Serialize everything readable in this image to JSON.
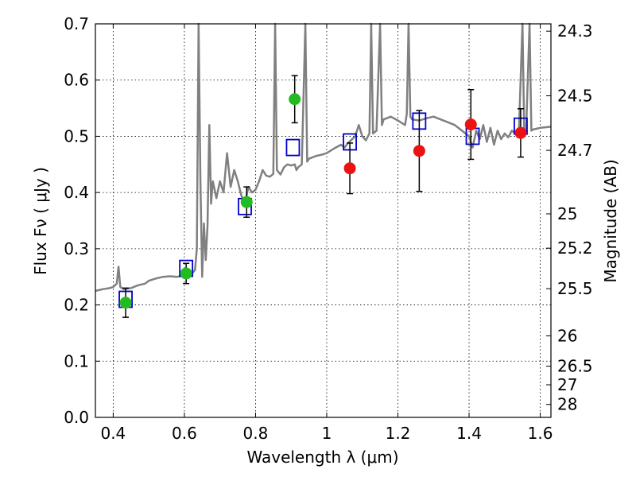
{
  "chart_data": {
    "type": "scatter",
    "xlabel": "Wavelength  λ (μm)",
    "ylabel": "Flux  Fν  ( μJy )",
    "ylabel_right": "Magnitude (AB)",
    "xlim": [
      0.35,
      1.63
    ],
    "ylim": [
      0.0,
      0.7
    ],
    "grid": true,
    "x_ticks": [
      {
        "value": 0.4,
        "label": "0.4"
      },
      {
        "value": 0.6,
        "label": "0.6"
      },
      {
        "value": 0.8,
        "label": "0.8"
      },
      {
        "value": 1.0,
        "label": "1"
      },
      {
        "value": 1.2,
        "label": "1.2"
      },
      {
        "value": 1.4,
        "label": "1.4"
      },
      {
        "value": 1.6,
        "label": "1.6"
      }
    ],
    "y_ticks": [
      {
        "value": 0.0,
        "label": "0.0"
      },
      {
        "value": 0.1,
        "label": "0.1"
      },
      {
        "value": 0.2,
        "label": "0.2"
      },
      {
        "value": 0.3,
        "label": "0.3"
      },
      {
        "value": 0.4,
        "label": "0.4"
      },
      {
        "value": 0.5,
        "label": "0.5"
      },
      {
        "value": 0.6,
        "label": "0.6"
      },
      {
        "value": 0.7,
        "label": "0.7"
      }
    ],
    "mag_ticks": [
      {
        "flux": 0.687,
        "label": "24.3"
      },
      {
        "flux": 0.572,
        "label": "24.5"
      },
      {
        "flux": 0.475,
        "label": "24.7"
      },
      {
        "flux": 0.362,
        "label": "25"
      },
      {
        "flux": 0.301,
        "label": "25.2"
      },
      {
        "flux": 0.229,
        "label": "25.5"
      },
      {
        "flux": 0.145,
        "label": "26"
      },
      {
        "flux": 0.091,
        "label": "26.5"
      },
      {
        "flux": 0.058,
        "label": "27"
      },
      {
        "flux": 0.023,
        "label": "28"
      }
    ],
    "series": [
      {
        "marker": "line",
        "color": "#808080",
        "points": [
          [
            0.35,
            0.225
          ],
          [
            0.37,
            0.228
          ],
          [
            0.39,
            0.23
          ],
          [
            0.4,
            0.232
          ],
          [
            0.41,
            0.238
          ],
          [
            0.415,
            0.268
          ],
          [
            0.42,
            0.232
          ],
          [
            0.43,
            0.228
          ],
          [
            0.45,
            0.23
          ],
          [
            0.47,
            0.235
          ],
          [
            0.49,
            0.238
          ],
          [
            0.5,
            0.243
          ],
          [
            0.52,
            0.247
          ],
          [
            0.54,
            0.25
          ],
          [
            0.56,
            0.251
          ],
          [
            0.58,
            0.25
          ],
          [
            0.6,
            0.253
          ],
          [
            0.61,
            0.25
          ],
          [
            0.62,
            0.255
          ],
          [
            0.63,
            0.262
          ],
          [
            0.635,
            0.3
          ],
          [
            0.64,
            0.7
          ],
          [
            0.645,
            0.42
          ],
          [
            0.65,
            0.25
          ],
          [
            0.655,
            0.345
          ],
          [
            0.66,
            0.28
          ],
          [
            0.665,
            0.34
          ],
          [
            0.67,
            0.52
          ],
          [
            0.675,
            0.38
          ],
          [
            0.68,
            0.42
          ],
          [
            0.69,
            0.39
          ],
          [
            0.7,
            0.42
          ],
          [
            0.71,
            0.4
          ],
          [
            0.72,
            0.47
          ],
          [
            0.73,
            0.41
          ],
          [
            0.74,
            0.44
          ],
          [
            0.75,
            0.42
          ],
          [
            0.76,
            0.395
          ],
          [
            0.77,
            0.38
          ],
          [
            0.78,
            0.41
          ],
          [
            0.79,
            0.4
          ],
          [
            0.8,
            0.405
          ],
          [
            0.81,
            0.42
          ],
          [
            0.82,
            0.44
          ],
          [
            0.83,
            0.43
          ],
          [
            0.84,
            0.428
          ],
          [
            0.85,
            0.433
          ],
          [
            0.855,
            0.7
          ],
          [
            0.86,
            0.44
          ],
          [
            0.87,
            0.432
          ],
          [
            0.88,
            0.445
          ],
          [
            0.89,
            0.45
          ],
          [
            0.9,
            0.448
          ],
          [
            0.91,
            0.45
          ],
          [
            0.915,
            0.44
          ],
          [
            0.92,
            0.445
          ],
          [
            0.93,
            0.45
          ],
          [
            0.94,
            0.7
          ],
          [
            0.945,
            0.455
          ],
          [
            0.95,
            0.46
          ],
          [
            0.97,
            0.465
          ],
          [
            0.99,
            0.468
          ],
          [
            1.0,
            0.47
          ],
          [
            1.02,
            0.478
          ],
          [
            1.04,
            0.485
          ],
          [
            1.05,
            0.48
          ],
          [
            1.06,
            0.488
          ],
          [
            1.07,
            0.494
          ],
          [
            1.08,
            0.5
          ],
          [
            1.09,
            0.52
          ],
          [
            1.1,
            0.5
          ],
          [
            1.11,
            0.493
          ],
          [
            1.12,
            0.505
          ],
          [
            1.125,
            0.7
          ],
          [
            1.13,
            0.505
          ],
          [
            1.14,
            0.51
          ],
          [
            1.15,
            0.7
          ],
          [
            1.155,
            0.52
          ],
          [
            1.16,
            0.53
          ],
          [
            1.18,
            0.535
          ],
          [
            1.2,
            0.528
          ],
          [
            1.22,
            0.52
          ],
          [
            1.225,
            0.54
          ],
          [
            1.23,
            0.7
          ],
          [
            1.235,
            0.535
          ],
          [
            1.24,
            0.53
          ],
          [
            1.26,
            0.528
          ],
          [
            1.28,
            0.532
          ],
          [
            1.3,
            0.535
          ],
          [
            1.32,
            0.53
          ],
          [
            1.34,
            0.525
          ],
          [
            1.36,
            0.52
          ],
          [
            1.38,
            0.51
          ],
          [
            1.39,
            0.505
          ],
          [
            1.4,
            0.5
          ],
          [
            1.41,
            0.48
          ],
          [
            1.42,
            0.51
          ],
          [
            1.43,
            0.495
          ],
          [
            1.44,
            0.52
          ],
          [
            1.45,
            0.49
          ],
          [
            1.46,
            0.515
          ],
          [
            1.47,
            0.485
          ],
          [
            1.48,
            0.51
          ],
          [
            1.49,
            0.495
          ],
          [
            1.5,
            0.505
          ],
          [
            1.51,
            0.498
          ],
          [
            1.52,
            0.51
          ],
          [
            1.53,
            0.505
          ],
          [
            1.54,
            0.508
          ],
          [
            1.55,
            0.7
          ],
          [
            1.555,
            0.51
          ],
          [
            1.56,
            0.505
          ],
          [
            1.57,
            0.7
          ],
          [
            1.575,
            0.51
          ],
          [
            1.58,
            0.512
          ],
          [
            1.6,
            0.515
          ],
          [
            1.63,
            0.517
          ]
        ]
      },
      {
        "marker": "open-square",
        "color": "#0000cc",
        "points": [
          [
            0.435,
            0.21
          ],
          [
            0.605,
            0.265
          ],
          [
            0.77,
            0.375
          ],
          [
            0.905,
            0.48
          ],
          [
            1.065,
            0.49
          ],
          [
            1.26,
            0.527
          ],
          [
            1.41,
            0.5
          ],
          [
            1.545,
            0.518
          ]
        ]
      },
      {
        "marker": "circle",
        "color": "#22bb22",
        "points": [
          [
            0.435,
            0.204
          ],
          [
            0.605,
            0.256
          ],
          [
            0.775,
            0.383
          ],
          [
            0.91,
            0.566
          ]
        ],
        "yerr": [
          0.026,
          0.018,
          0.027,
          0.042
        ]
      },
      {
        "marker": "circle",
        "color": "#ee1111",
        "points": [
          [
            1.065,
            0.443
          ],
          [
            1.26,
            0.474
          ],
          [
            1.405,
            0.521
          ],
          [
            1.545,
            0.506
          ]
        ],
        "yerr": [
          0.045,
          0.072,
          0.062,
          0.043
        ]
      }
    ]
  }
}
